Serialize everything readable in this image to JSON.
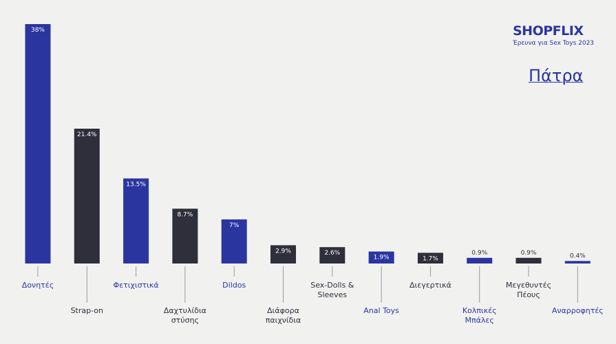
{
  "chart_data": {
    "type": "bar",
    "brand": "SHOPFLIX",
    "subtitle": "Έρευνα για Sex Toys 2023",
    "title": "Πάτρα",
    "categories": [
      "Δονητές",
      "Strap-on",
      "Φετιχιστικά",
      "Δαχτυλίδια στύσης",
      "Dildos",
      "Διάφορα παιχνίδια",
      "Sex-Dolls & Sleeves",
      "Anal Toys",
      "Διεγερτικά",
      "Κολπικές Μπάλες",
      "Μεγεθυντές Πέους",
      "Αναρροφητές"
    ],
    "values": [
      38,
      21.4,
      13.5,
      8.7,
      7,
      2.9,
      2.6,
      1.9,
      1.7,
      0.9,
      0.9,
      0.4
    ],
    "value_labels": [
      "38%",
      "21.4%",
      "13.5%",
      "8.7%",
      "7%",
      "2.9%",
      "2.6%",
      "1.9%",
      "1.7%",
      "0.9%",
      "0.9%",
      "0.4%"
    ],
    "colors": [
      "#2b35a0",
      "#2e2f3b",
      "#2b35a0",
      "#2e2f3b",
      "#2b35a0",
      "#2e2f3b",
      "#2e2f3b",
      "#2b35a0",
      "#2e2f3b",
      "#2b35a0",
      "#2e2f3b",
      "#2b35a0"
    ]
  }
}
